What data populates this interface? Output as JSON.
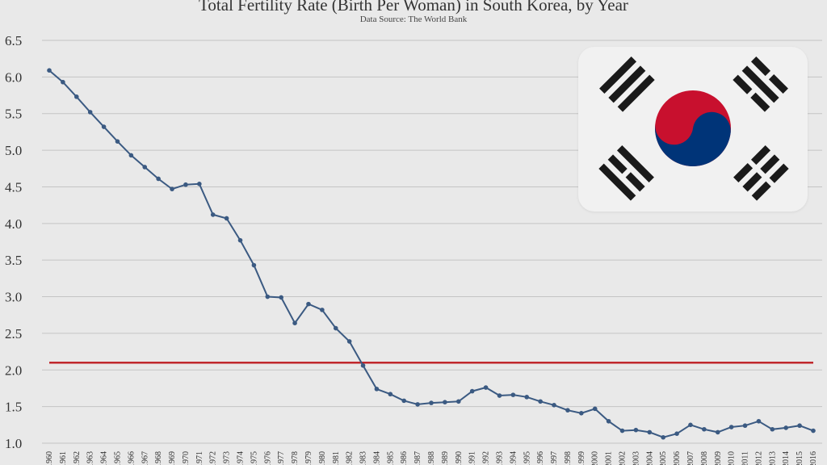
{
  "chart_data": {
    "type": "line",
    "title": "Total Fertility Rate (Birth Per Woman) in South Korea, by Year",
    "subtitle": "Data Source: The World Bank",
    "xlabel": "",
    "ylabel": "",
    "ylim": [
      1.0,
      6.5
    ],
    "yticks": [
      "1.0",
      "1.5",
      "2.0",
      "2.5",
      "3.0",
      "3.5",
      "4.0",
      "4.5",
      "5.0",
      "5.5",
      "6.0",
      "6.5"
    ],
    "x": [
      "1960",
      "1961",
      "1962",
      "1963",
      "1964",
      "1965",
      "1966",
      "1967",
      "1968",
      "1969",
      "1970",
      "1971",
      "1972",
      "1973",
      "1974",
      "1975",
      "1976",
      "1977",
      "1978",
      "1979",
      "1980",
      "1981",
      "1982",
      "1983",
      "1984",
      "1985",
      "1986",
      "1987",
      "1988",
      "1989",
      "1990",
      "1991",
      "1992",
      "1993",
      "1994",
      "1995",
      "1996",
      "1997",
      "1998",
      "1999",
      "2000",
      "2001",
      "2002",
      "2003",
      "2004",
      "2005",
      "2006",
      "2007",
      "2008",
      "2009",
      "2010",
      "2011",
      "2012",
      "2013",
      "2014",
      "2015",
      "2016"
    ],
    "series": [
      {
        "values": [
          6.09,
          5.93,
          5.73,
          5.52,
          5.32,
          5.12,
          4.93,
          4.77,
          4.61,
          4.47,
          4.53,
          4.54,
          4.12,
          4.07,
          3.77,
          3.43,
          3.0,
          2.99,
          2.64,
          2.9,
          2.82,
          2.57,
          2.39,
          2.06,
          1.74,
          1.67,
          1.58,
          1.53,
          1.55,
          1.56,
          1.57,
          1.71,
          1.76,
          1.65,
          1.66,
          1.63,
          1.57,
          1.52,
          1.45,
          1.41,
          1.47,
          1.3,
          1.17,
          1.18,
          1.15,
          1.08,
          1.13,
          1.25,
          1.19,
          1.15,
          1.22,
          1.24,
          1.3,
          1.19,
          1.21,
          1.24,
          1.17
        ],
        "color": "#3b5a82"
      }
    ],
    "reference_line": {
      "value": 2.1,
      "color": "#c0282d"
    },
    "grid": true,
    "colors": {
      "grid": "#c4c4c4",
      "background": "#e9e9e9"
    }
  },
  "flag_image": {
    "icon": "south-korea-flag-icon",
    "colors": {
      "red": "#c8102e",
      "blue": "#003478",
      "black": "#1a1a1a",
      "white": "#f1f1f1"
    }
  }
}
